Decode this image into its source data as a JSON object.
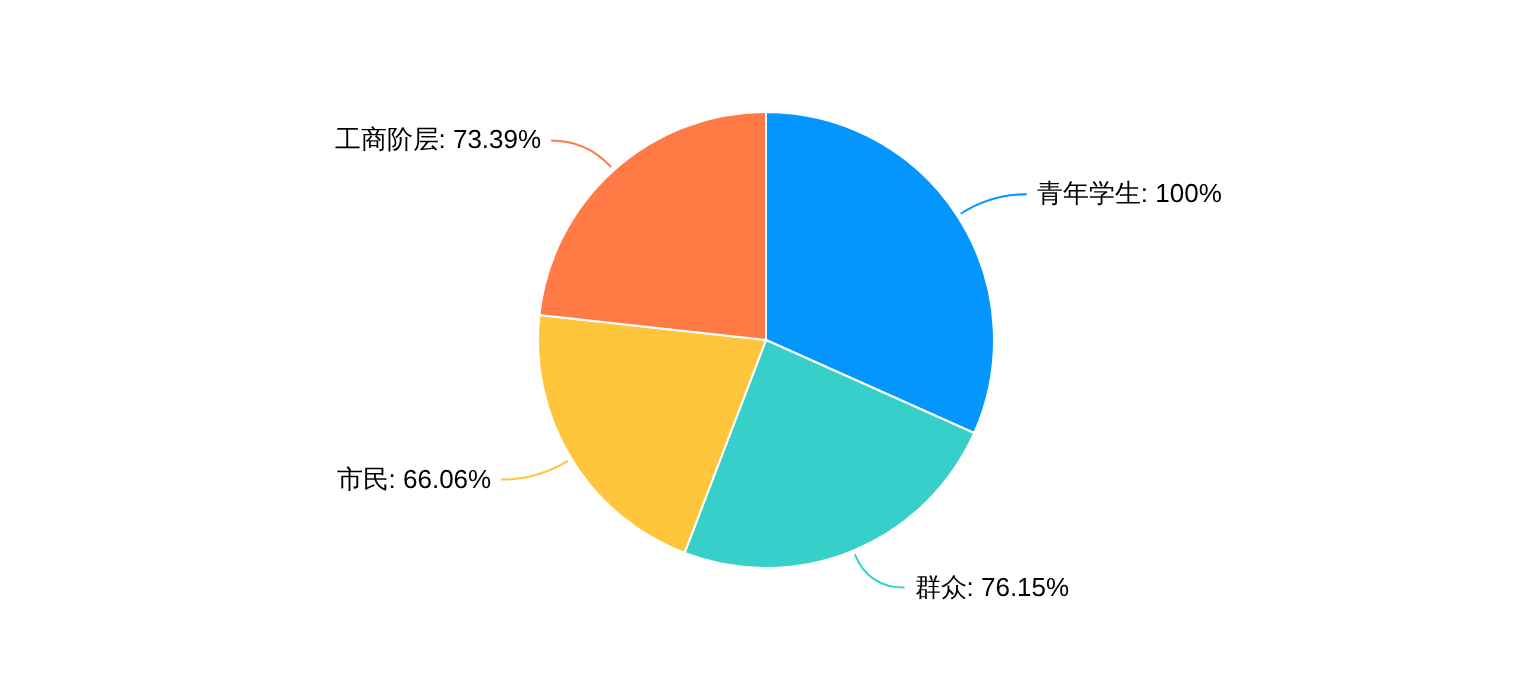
{
  "chart_data": {
    "type": "pie",
    "categories": [
      "青年学生",
      "群众",
      "市民",
      "工商阶层"
    ],
    "values": [
      100,
      76.15,
      66.06,
      73.39
    ],
    "value_labels": [
      "100%",
      "76.15%",
      "66.06%",
      "73.39%"
    ],
    "colors": [
      "#0396ff",
      "#36cfc9",
      "#ffc53d",
      "#ff7a45"
    ]
  }
}
